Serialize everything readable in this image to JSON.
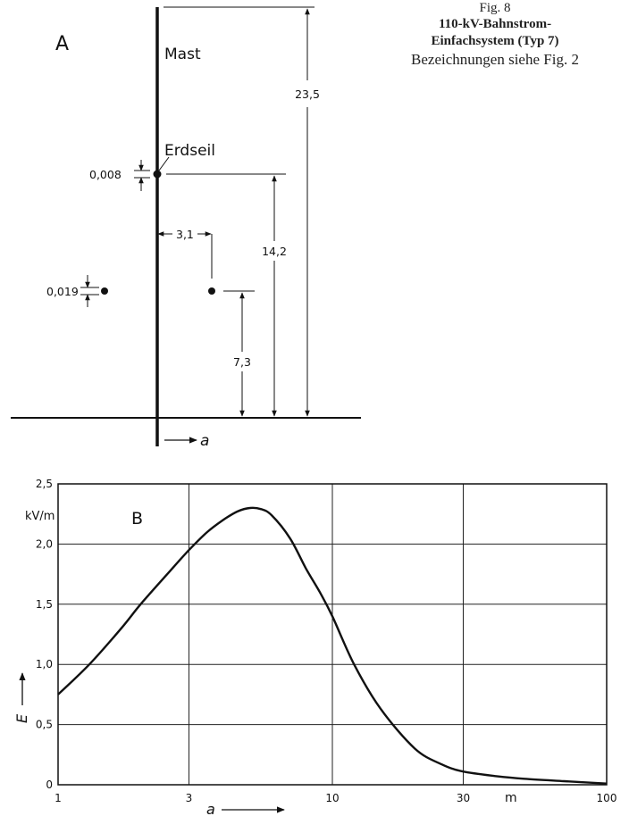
{
  "caption": {
    "figure_number": "Fig. 8",
    "title_line1": "110-kV-Bahnstrom-",
    "title_line2": "Einfachsystem (Typ 7)",
    "reference": "Bezeichnungen siehe Fig. 2"
  },
  "diagram_a": {
    "panel_label": "A",
    "mast_label": "Mast",
    "ground_wire_label": "Erdseil",
    "ground_wire_diameter": "0,008",
    "conductor_diameter": "0,019",
    "conductor_offset": "3,1",
    "height_total": "23,5",
    "height_ground_wire": "14,2",
    "height_conductor": "7,3",
    "axis_variable": "a"
  },
  "chart_data": {
    "type": "line",
    "panel_label": "B",
    "xscale": "log",
    "xlim": [
      1,
      100
    ],
    "ylim": [
      0,
      2.5
    ],
    "x_ticks": [
      "1",
      "3",
      "10",
      "30",
      "100"
    ],
    "y_ticks": [
      "0",
      "0,5",
      "1,0",
      "1,5",
      "2,0",
      "2,5"
    ],
    "x_unit": "m",
    "y_unit": "kV/m",
    "xlabel": "a",
    "ylabel": "E",
    "grid": true,
    "series": [
      {
        "x": [
          1,
          1.3,
          1.7,
          2,
          2.5,
          3,
          3.5,
          4,
          4.5,
          5,
          5.5,
          6,
          7,
          8,
          9,
          10,
          12,
          15,
          20,
          25,
          30,
          40,
          50,
          70,
          100
        ],
        "y": [
          0.75,
          1.0,
          1.3,
          1.5,
          1.75,
          1.95,
          2.1,
          2.2,
          2.27,
          2.3,
          2.29,
          2.24,
          2.05,
          1.8,
          1.6,
          1.4,
          1.0,
          0.63,
          0.3,
          0.17,
          0.11,
          0.07,
          0.05,
          0.03,
          0.01
        ]
      }
    ]
  }
}
